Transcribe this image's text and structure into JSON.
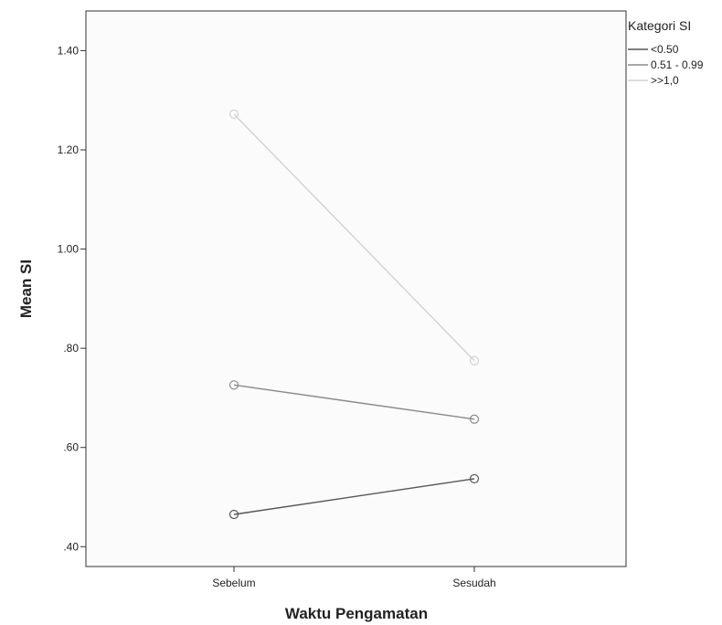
{
  "chart_data": {
    "type": "line",
    "xlabel": "Waktu Pengamatan",
    "ylabel": "Mean SI",
    "categories": [
      "Sebelum",
      "Sesudah"
    ],
    "ylim": [
      0.36,
      1.48
    ],
    "yticks": [
      0.4,
      0.6,
      0.8,
      1.0,
      1.2,
      1.4
    ],
    "ytick_labels": [
      ".40",
      ".60",
      ".80",
      "1.00",
      "1.20",
      "1.40"
    ],
    "grid": false,
    "legend": {
      "title": "Kategori SI",
      "placement": "outside-top-right"
    },
    "series": [
      {
        "name": "<0.50",
        "values": [
          0.465,
          0.537
        ],
        "color": "#555555"
      },
      {
        "name": "0.51 - 0.99",
        "values": [
          0.726,
          0.657
        ],
        "color": "#8a8a8a"
      },
      {
        "name": ">>1,0",
        "values": [
          1.272,
          0.775
        ],
        "color": "#d2d2d2"
      }
    ]
  }
}
